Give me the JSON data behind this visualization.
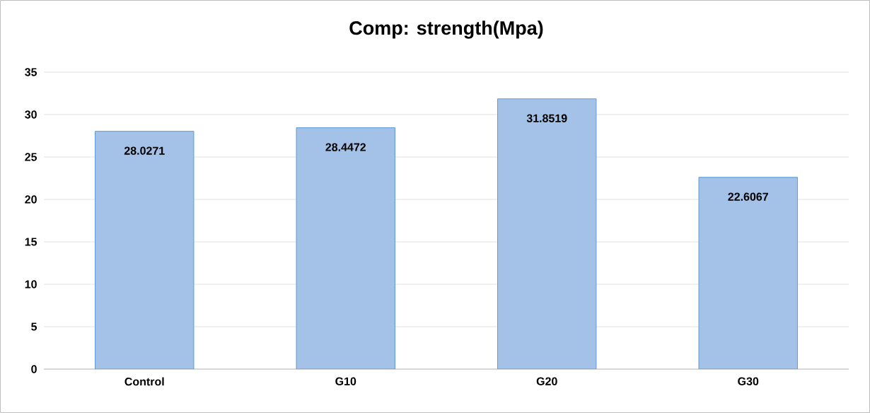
{
  "chart_data": {
    "type": "bar",
    "title": "Comp: strength(Mpa)",
    "categories": [
      "Control",
      "G10",
      "G20",
      "G30"
    ],
    "values": [
      28.0271,
      28.4472,
      31.8519,
      22.6067
    ],
    "color": "#a4c2e8",
    "ylim": [
      0,
      35
    ],
    "yticks": [
      0,
      5,
      10,
      15,
      20,
      25,
      30,
      35
    ],
    "grid": "y",
    "data_labels": true
  }
}
